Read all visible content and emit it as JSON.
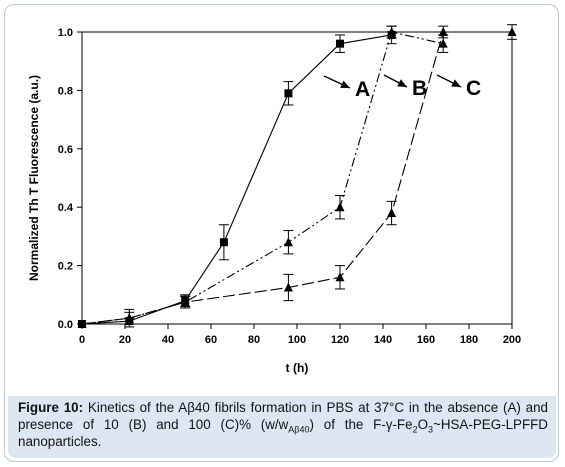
{
  "figure_caption": {
    "label": "Figure 10:",
    "text_before_sub": " Kinetics of the Aβ40 fibrils formation in PBS at 37°C in the absence (A) and presence of 10 (B) and 100 (C)% (w/w",
    "sub1": "Aβ40",
    "text_mid": ") of the F-γ-Fe",
    "sub2": "2",
    "text_o": "O",
    "sub3": "3",
    "text_after": "~HSA-PEG-LPFFD nanoparticles."
  },
  "chart_data": {
    "type": "line",
    "title": "",
    "xlabel": "t (h)",
    "ylabel": "Normalized Th T Fluorescence (a.u.)",
    "xlim": [
      0,
      200
    ],
    "ylim": [
      0,
      1.0
    ],
    "xticks": [
      0,
      20,
      40,
      60,
      80,
      100,
      120,
      140,
      160,
      180,
      200
    ],
    "yticks": [
      0.0,
      0.2,
      0.4,
      0.6,
      0.8,
      1.0
    ],
    "xtick_labels": [
      "0",
      "20",
      "40",
      "60",
      "80",
      "100",
      "120",
      "140",
      "160",
      "180",
      "200"
    ],
    "ytick_labels": [
      "0.0",
      "0.2",
      "0.4",
      "0.6",
      "0.8",
      "1.0"
    ],
    "grid": false,
    "legend": null,
    "series": [
      {
        "label": "A",
        "marker": "square",
        "line_style": "solid",
        "x": [
          0,
          22,
          48,
          66,
          96,
          120,
          144
        ],
        "y": [
          0.0,
          0.01,
          0.08,
          0.28,
          0.79,
          0.96,
          0.99
        ],
        "err": [
          0,
          0.01,
          0.02,
          0.06,
          0.04,
          0.03,
          0.03
        ]
      },
      {
        "label": "B",
        "marker": "triangle",
        "line_style": "dash-dot-dot",
        "x": [
          0,
          22,
          48,
          96,
          120,
          144,
          168
        ],
        "y": [
          0.0,
          0.02,
          0.075,
          0.28,
          0.4,
          1.0,
          0.96
        ],
        "err": [
          0,
          0.03,
          0.02,
          0.04,
          0.04,
          0.02,
          0.03
        ]
      },
      {
        "label": "C",
        "marker": "triangle",
        "line_style": "long-dash",
        "x": [
          0,
          22,
          48,
          96,
          120,
          144,
          168,
          200
        ],
        "y": [
          0.0,
          0.02,
          0.075,
          0.125,
          0.16,
          0.38,
          1.0,
          1.0
        ],
        "err": [
          0,
          0.02,
          0.02,
          0.045,
          0.04,
          0.04,
          0.02,
          0.025
        ]
      }
    ],
    "annotations": [
      {
        "text": "A",
        "series": "A"
      },
      {
        "text": "B",
        "series": "B"
      },
      {
        "text": "C",
        "series": "C"
      }
    ]
  }
}
